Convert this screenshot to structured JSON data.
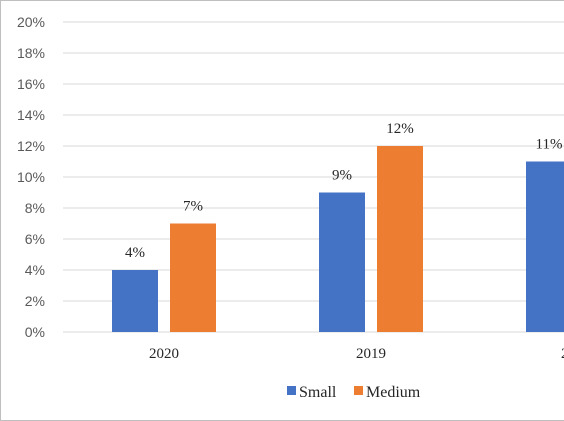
{
  "chart_data": {
    "type": "bar",
    "categories": [
      "2020",
      "2019",
      ""
    ],
    "series": [
      {
        "name": "Small",
        "values": [
          4,
          9,
          11
        ],
        "color": "#4472C4"
      },
      {
        "name": "Medium",
        "values": [
          7,
          12,
          null
        ],
        "color": "#ED7D31"
      }
    ],
    "data_labels": [
      [
        "4%",
        "9%",
        "11%"
      ],
      [
        "7%",
        "12%",
        ""
      ]
    ],
    "y_ticks": [
      "0%",
      "2%",
      "4%",
      "6%",
      "8%",
      "10%",
      "12%",
      "14%",
      "16%",
      "18%",
      "20%"
    ],
    "ylim": [
      0,
      20
    ],
    "grid": true,
    "legend": "bottom-center"
  }
}
